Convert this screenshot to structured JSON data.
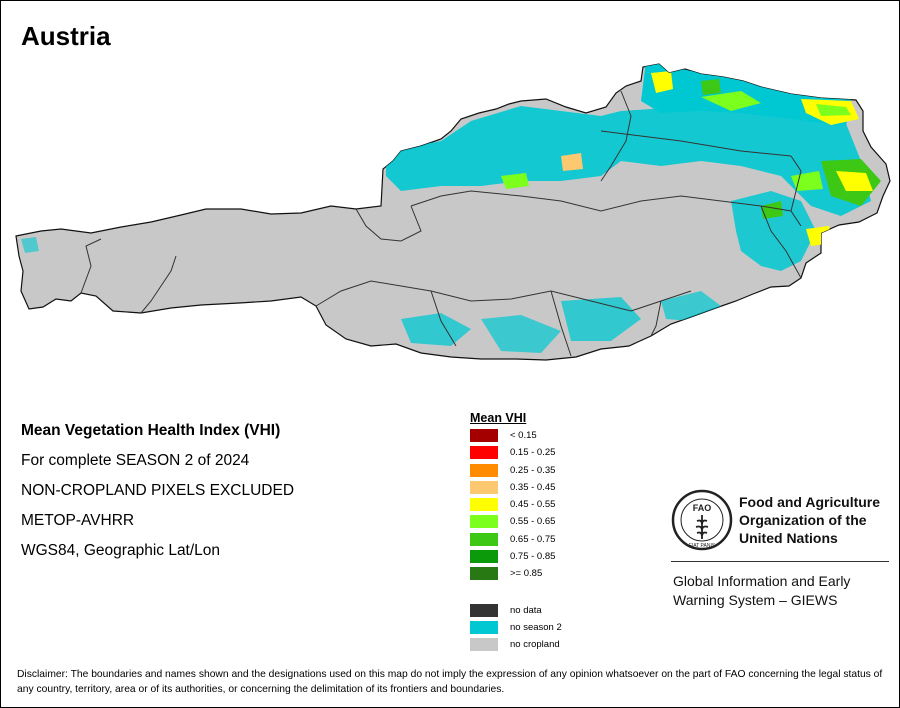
{
  "title": "Austria",
  "info": {
    "heading": "Mean Vegetation Health Index (VHI)",
    "season": "For complete SEASON 2 of 2024",
    "mask": "NON-CROPLAND PIXELS EXCLUDED",
    "sensor": "METOP-AVHRR",
    "projection": "WGS84, Geographic Lat/Lon"
  },
  "legend": {
    "title": "Mean VHI",
    "classes": [
      {
        "label": "< 0.15",
        "color": "#a50000"
      },
      {
        "label": "0.15 - 0.25",
        "color": "#ff0000"
      },
      {
        "label": "0.25 - 0.35",
        "color": "#ff8c00"
      },
      {
        "label": "0.35 - 0.45",
        "color": "#fcc870"
      },
      {
        "label": "0.45 - 0.55",
        "color": "#ffff00"
      },
      {
        "label": "0.55 - 0.65",
        "color": "#7dff1e"
      },
      {
        "label": "0.65 - 0.75",
        "color": "#3cc814"
      },
      {
        "label": "0.75 - 0.85",
        "color": "#0a9a0a"
      },
      {
        "label": ">= 0.85",
        "color": "#287814"
      }
    ],
    "other": [
      {
        "label": "no data",
        "color": "#333333"
      },
      {
        "label": "no season 2",
        "color": "#00c8d2"
      },
      {
        "label": "no cropland",
        "color": "#c8c8c8"
      }
    ]
  },
  "map": {
    "country_fill": "#c8c8c8",
    "no_season_color": "#00c8d2",
    "border_color": "#222222"
  },
  "fao": {
    "name_line1": "Food and Agriculture",
    "name_line2": "Organization of the",
    "name_line3": "United Nations",
    "giews_line1": "Global Information and Early",
    "giews_line2": "Warning System – GIEWS",
    "logo_text_top": "FAO",
    "logo_text_bottom": "FIAT PANIS"
  },
  "disclaimer": "Disclaimer: The boundaries and names shown and the designations used on this map do not imply the expression of any opinion whatsoever on the part of FAO concerning the legal status of any country, territory, area or of its authorities, or concerning the delimitation of its frontiers and boundaries."
}
